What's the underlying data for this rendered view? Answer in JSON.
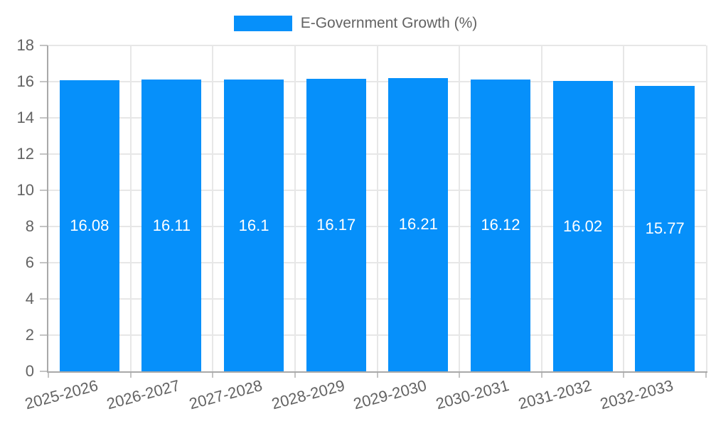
{
  "legend": {
    "label": "E-Government Growth (%)"
  },
  "chart_data": {
    "type": "bar",
    "title": "E-Government Growth (%)",
    "categories": [
      "2025-2026",
      "2026-2027",
      "2027-2028",
      "2028-2029",
      "2029-2030",
      "2030-2031",
      "2031-2032",
      "2032-2033"
    ],
    "values": [
      16.08,
      16.11,
      16.1,
      16.17,
      16.21,
      16.12,
      16.02,
      15.77
    ],
    "value_labels": [
      "16.08",
      "16.11",
      "16.1",
      "16.17",
      "16.21",
      "16.12",
      "16.02",
      "15.77"
    ],
    "series_name": "E-Government Growth (%)",
    "xlabel": "",
    "ylabel": "",
    "ylim": [
      0,
      18
    ],
    "yticks": [
      0,
      2,
      4,
      6,
      8,
      10,
      12,
      14,
      16,
      18
    ],
    "grid": true,
    "legend_position": "top",
    "colors": {
      "bar": "#0690fa",
      "bar_label": "#ffffff",
      "grid": "#e7e7e7",
      "axis": "#a9a9a9",
      "tick": "#c4c4c4",
      "text": "#636363"
    }
  }
}
